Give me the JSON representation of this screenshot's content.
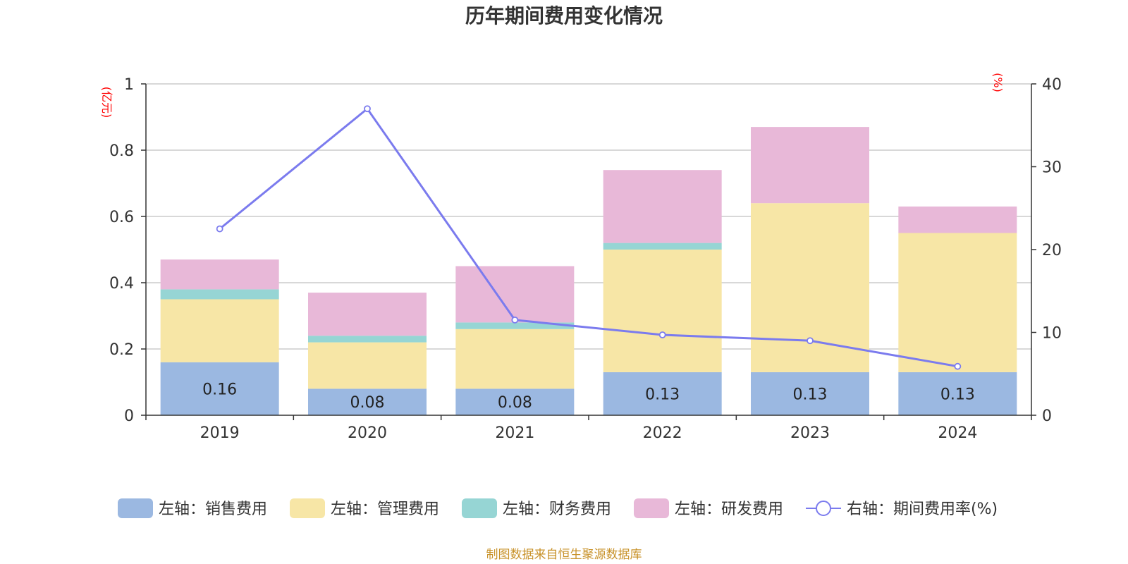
{
  "chart_data": {
    "title": "历年期间费用变化情况",
    "type": "bar",
    "categories": [
      "2019",
      "2020",
      "2021",
      "2022",
      "2023",
      "2024"
    ],
    "left_axis": {
      "unit": "(亿元)",
      "ylim": [
        0,
        1
      ],
      "ticks": [
        "0",
        "0.2",
        "0.4",
        "0.6",
        "0.8",
        "1"
      ]
    },
    "right_axis": {
      "unit": "(%)",
      "ylim": [
        0,
        40
      ],
      "ticks": [
        "0",
        "10",
        "20",
        "30",
        "40"
      ]
    },
    "grid": true,
    "legend_position": "bottom",
    "series": [
      {
        "name": "左轴：销售费用",
        "type": "bar",
        "stack": "left",
        "color": "#9bb8e1",
        "values": [
          0.16,
          0.08,
          0.08,
          0.13,
          0.13,
          0.13
        ],
        "labels": [
          "0.16",
          "0.08",
          "0.08",
          "0.13",
          "0.13",
          "0.13"
        ]
      },
      {
        "name": "左轴：管理费用",
        "type": "bar",
        "stack": "left",
        "color": "#f7e6a6",
        "values": [
          0.19,
          0.14,
          0.18,
          0.37,
          0.51,
          0.42
        ]
      },
      {
        "name": "左轴：财务费用",
        "type": "bar",
        "stack": "left",
        "color": "#96d5d4",
        "values": [
          0.03,
          0.02,
          0.02,
          0.02,
          0.0,
          0.0
        ]
      },
      {
        "name": "左轴：研发费用",
        "type": "bar",
        "stack": "left",
        "color": "#e8b8d8",
        "values": [
          0.09,
          0.13,
          0.17,
          0.22,
          0.23,
          0.08
        ]
      },
      {
        "name": "右轴：期间费用率(%)",
        "type": "line",
        "axis": "right",
        "color": "#7b7bee",
        "values": [
          22.5,
          37.0,
          11.5,
          9.7,
          9.0,
          5.9
        ]
      }
    ]
  },
  "source": "制图数据来自恒生聚源数据库"
}
